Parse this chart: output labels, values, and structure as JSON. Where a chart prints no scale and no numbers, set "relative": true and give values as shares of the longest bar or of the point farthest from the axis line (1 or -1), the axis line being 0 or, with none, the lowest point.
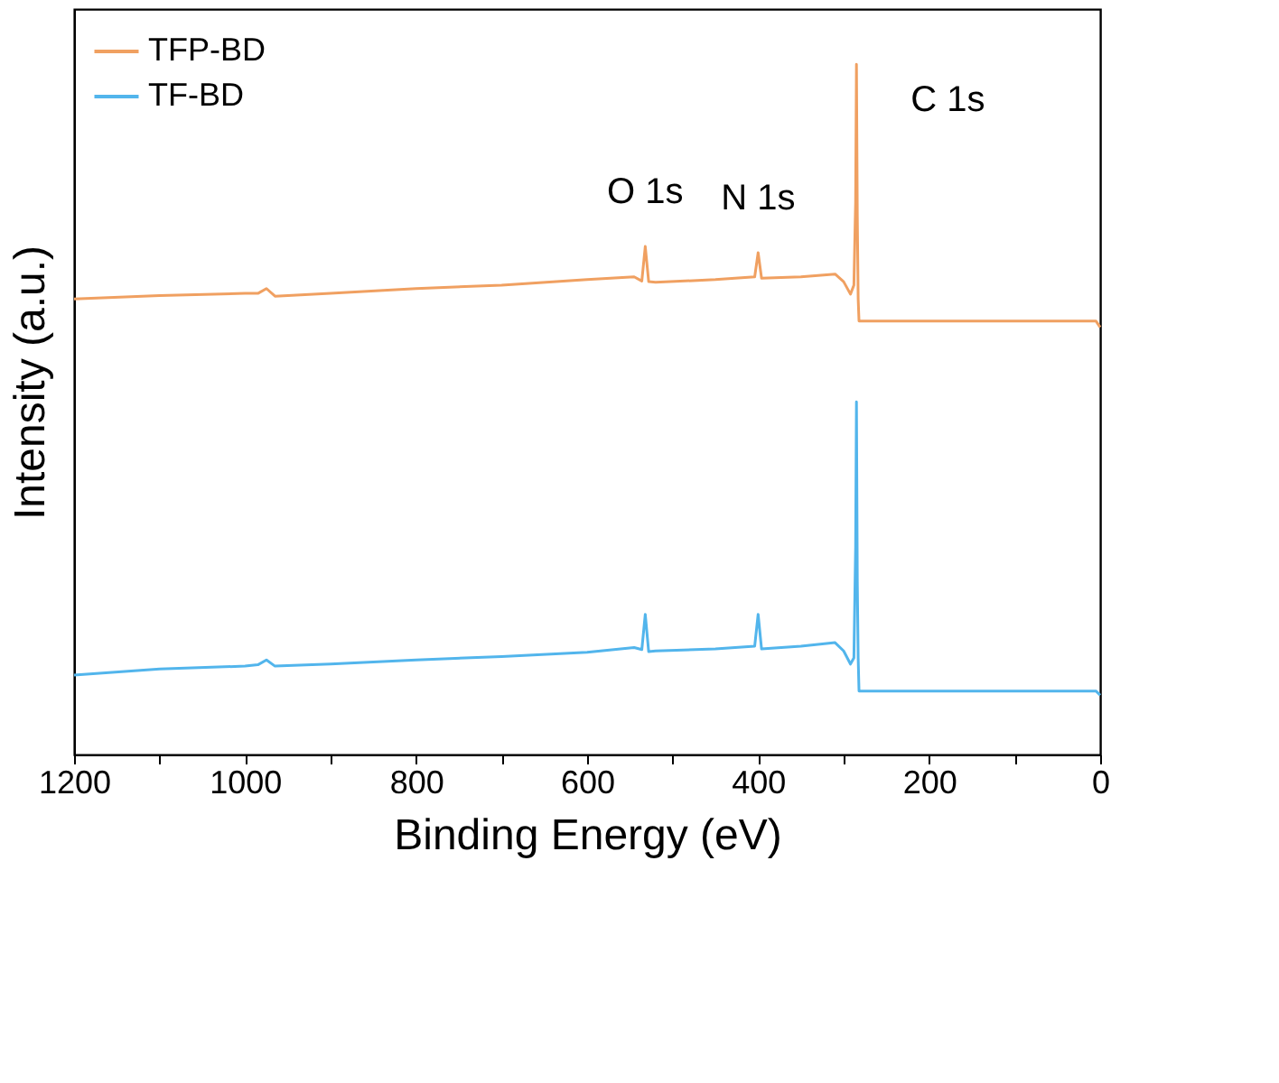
{
  "chart_data": {
    "type": "line",
    "relative": true,
    "xlabel": "Binding Energy (eV)",
    "ylabel": "Intensity (a.u.)",
    "xlim": [
      1200,
      0
    ],
    "xticks": [
      1200,
      {
        "value": 1100,
        "label": null
      },
      1000,
      {
        "value": 900,
        "label": null
      },
      800,
      {
        "value": 700,
        "label": null
      },
      600,
      {
        "value": 500,
        "label": null
      },
      400,
      {
        "value": 300,
        "label": null
      },
      200,
      {
        "value": 100,
        "label": null
      },
      0
    ],
    "tick_labels": "x",
    "grid": false,
    "legend": "top left",
    "annotations": [
      {
        "text": "O 1s",
        "x": 532,
        "y": 0.736
      },
      {
        "text": "N 1s",
        "x": 400,
        "y": 0.727
      },
      {
        "text": "C 1s",
        "x": 285,
        "y": 1.0
      }
    ],
    "series": [
      {
        "name": "TFP-BD",
        "color": "#f0a061",
        "x": [
          1200,
          1100,
          1000,
          985,
          975,
          965,
          900,
          800,
          700,
          600,
          545,
          536,
          532,
          528,
          520,
          450,
          404,
          400,
          396,
          350,
          310,
          300,
          292,
          288,
          286,
          285,
          284,
          283,
          282,
          200,
          100,
          5,
          0
        ],
        "values": [
          0.66,
          0.665,
          0.668,
          0.668,
          0.675,
          0.664,
          0.668,
          0.675,
          0.68,
          0.688,
          0.692,
          0.686,
          0.736,
          0.685,
          0.684,
          0.688,
          0.692,
          0.727,
          0.69,
          0.692,
          0.696,
          0.685,
          0.667,
          0.68,
          0.8,
          1.0,
          0.78,
          0.66,
          0.628,
          0.628,
          0.628,
          0.628,
          0.619
        ]
      },
      {
        "name": "TF-BD",
        "color": "#52b5ec",
        "x": [
          1200,
          1100,
          1000,
          985,
          975,
          965,
          900,
          800,
          700,
          600,
          545,
          536,
          532,
          528,
          520,
          450,
          404,
          400,
          396,
          350,
          310,
          300,
          292,
          288,
          286,
          285,
          284,
          283,
          282,
          200,
          100,
          5,
          0
        ],
        "values": [
          0.115,
          0.124,
          0.128,
          0.13,
          0.137,
          0.128,
          0.131,
          0.137,
          0.142,
          0.148,
          0.155,
          0.152,
          0.203,
          0.149,
          0.15,
          0.153,
          0.157,
          0.203,
          0.153,
          0.157,
          0.162,
          0.15,
          0.131,
          0.14,
          0.3,
          0.511,
          0.25,
          0.14,
          0.092,
          0.092,
          0.092,
          0.092,
          0.086
        ]
      }
    ]
  }
}
